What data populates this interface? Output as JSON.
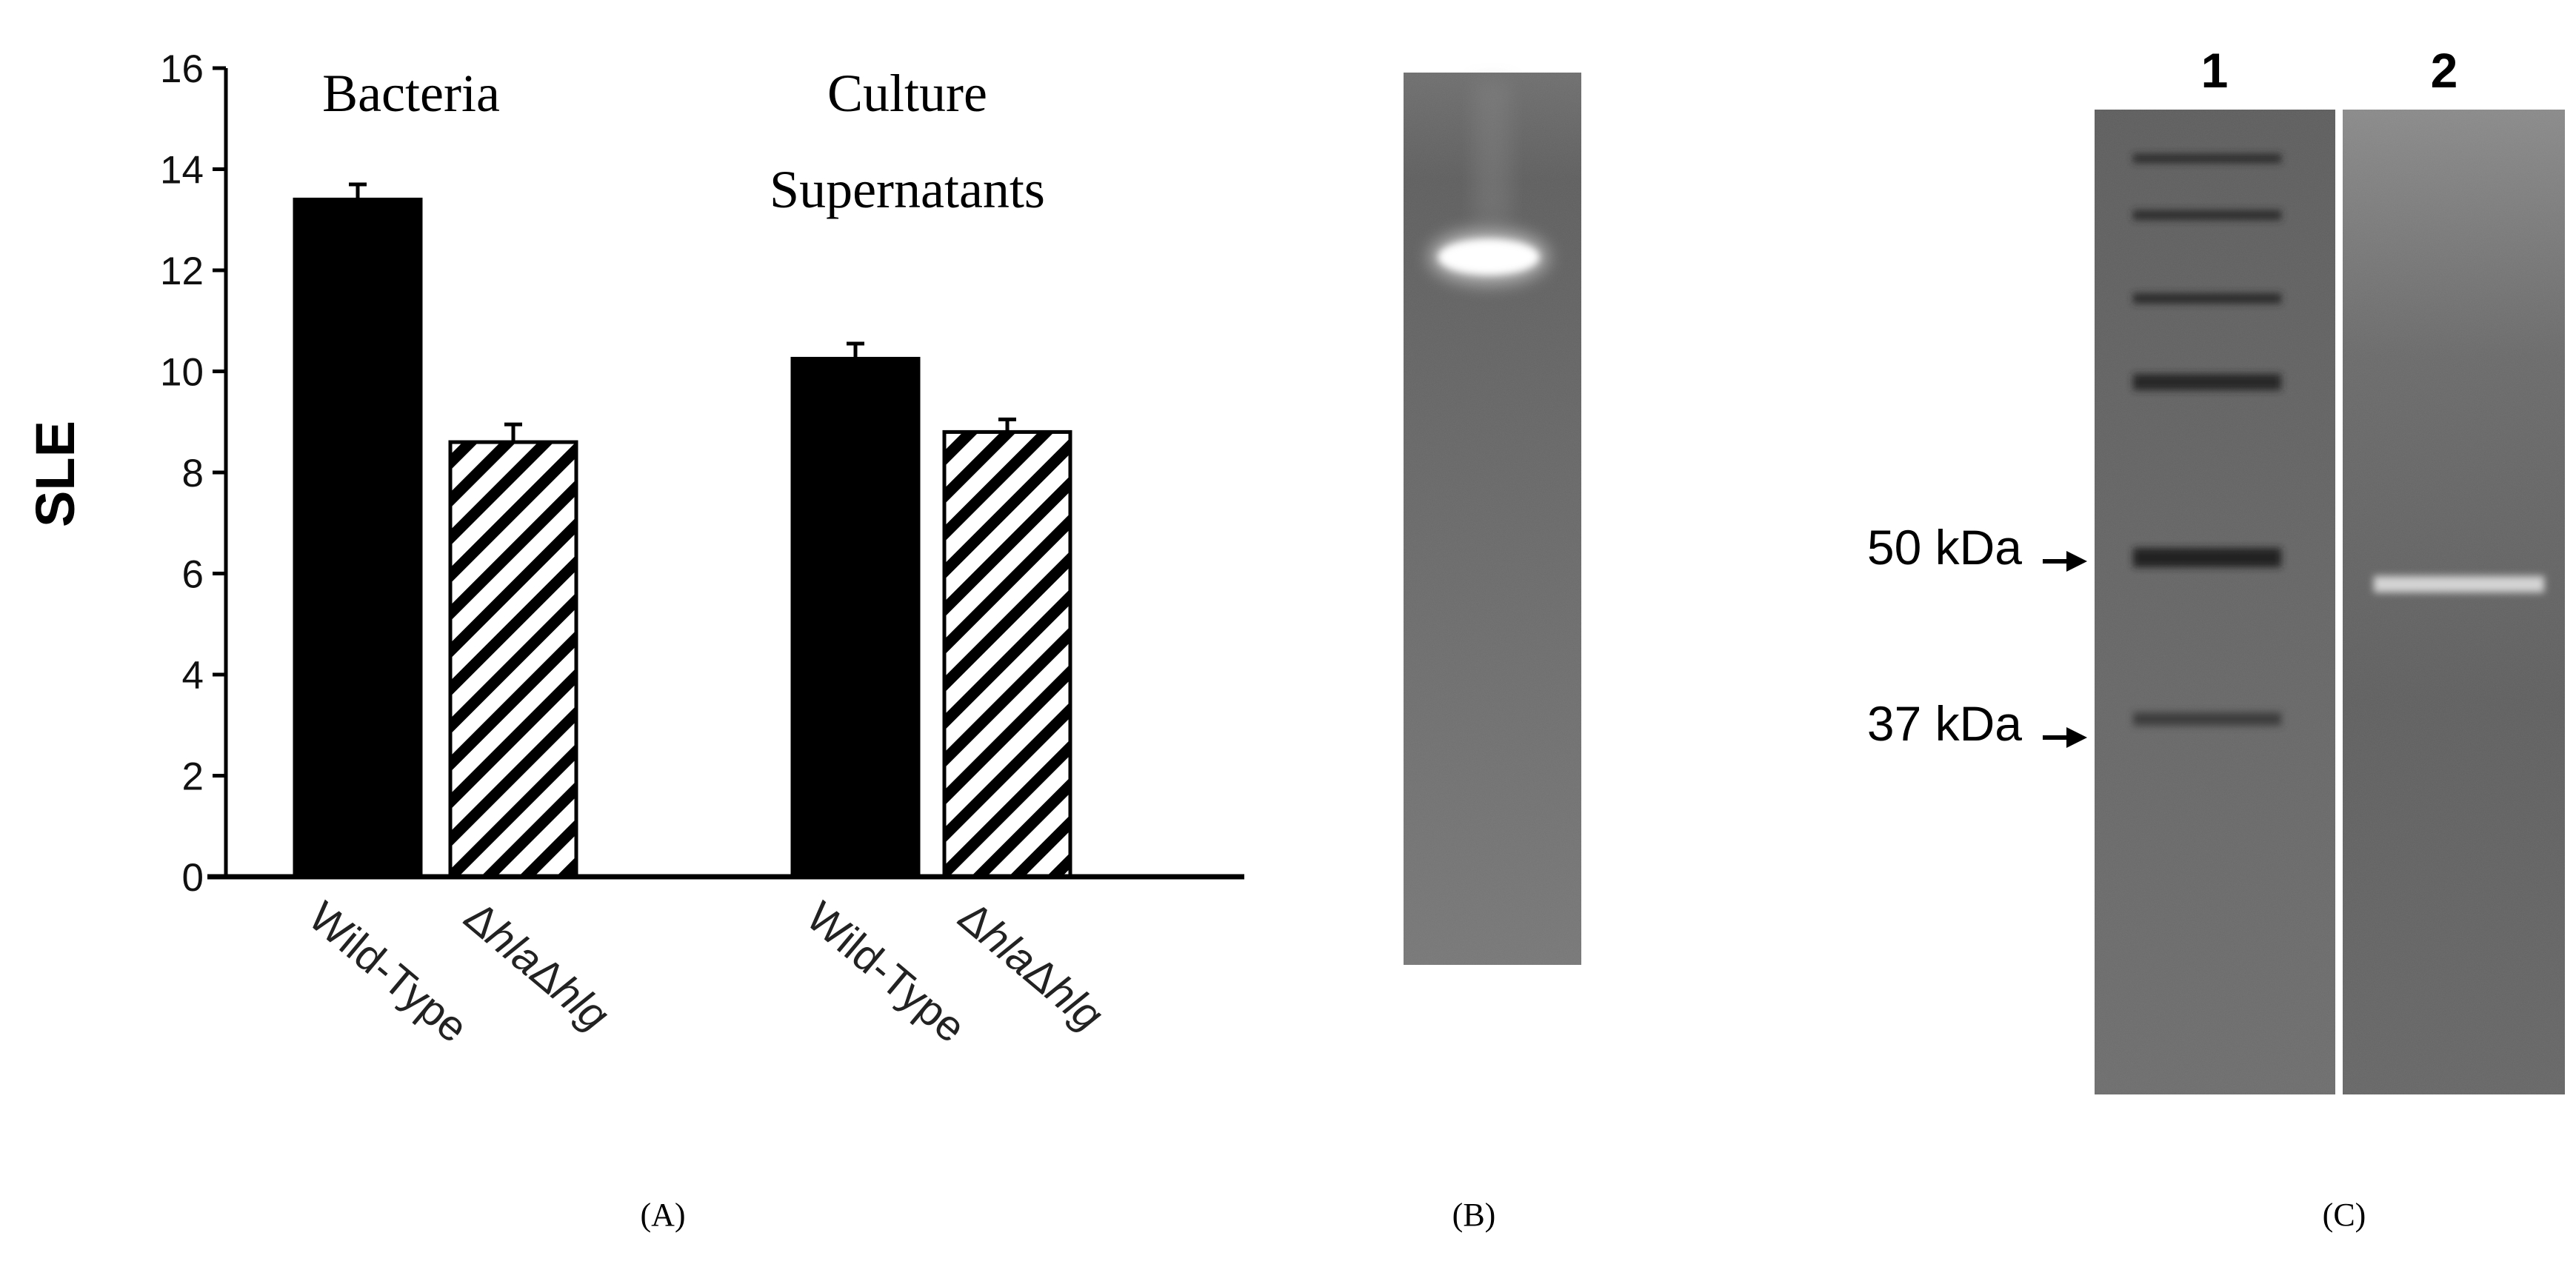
{
  "chart_data": {
    "type": "bar",
    "title": "",
    "xlabel": "",
    "ylabel": "SLE",
    "ylim": [
      0,
      16
    ],
    "yticks": [
      0,
      2,
      4,
      6,
      8,
      10,
      12,
      14,
      16
    ],
    "yticklabels": [
      "0",
      "2",
      "4",
      "6",
      "8",
      "10",
      "12",
      "14",
      "16"
    ],
    "groups": [
      {
        "name": "Bacteria",
        "name_lines": [
          "Bacteria"
        ],
        "bars": [
          {
            "category": "Wild-Type",
            "value": 13.4,
            "error": 0.3,
            "fill": "solid"
          },
          {
            "category": "ΔhlaΔhlg",
            "value": 8.6,
            "error": 0.35,
            "fill": "hatched"
          }
        ]
      },
      {
        "name": "Culture Supernatants",
        "name_lines": [
          "Culture",
          "Supernatants"
        ],
        "bars": [
          {
            "category": "Wild-Type",
            "value": 10.25,
            "error": 0.3,
            "fill": "solid"
          },
          {
            "category": "ΔhlaΔhlg",
            "value": 8.8,
            "error": 0.25,
            "fill": "hatched"
          }
        ]
      }
    ],
    "category_label_parts": {
      "wild_type": "Wild-Type",
      "delta": "Δ",
      "hla": "hla",
      "hlg": "hlg"
    },
    "colors": {
      "solid": "#000000",
      "hatch": "#000000",
      "axis": "#000000"
    }
  },
  "panels": {
    "a_label": "(A)",
    "b_label": "(B)",
    "c_label": "(C)"
  },
  "gel_c": {
    "lane_labels": [
      "1",
      "2"
    ],
    "markers": [
      {
        "label": "50 kDa",
        "kda": 50
      },
      {
        "label": "37 kDa",
        "kda": 37
      }
    ]
  }
}
